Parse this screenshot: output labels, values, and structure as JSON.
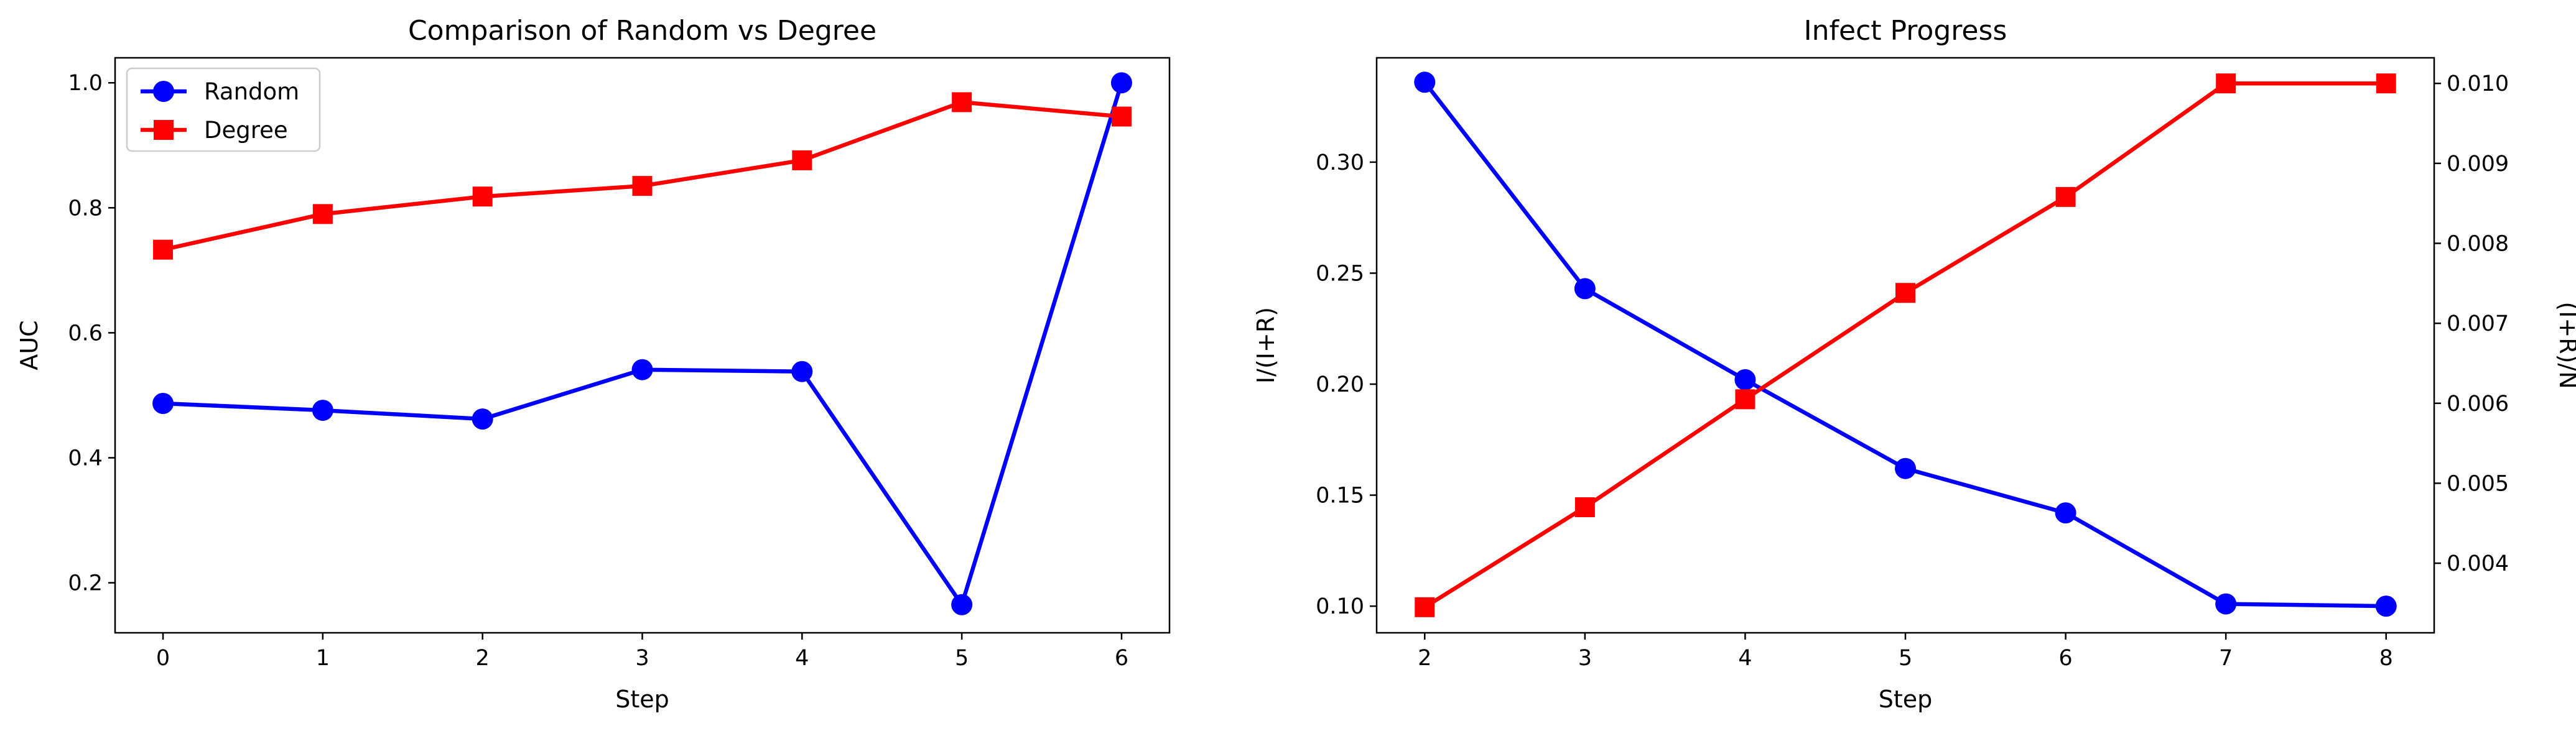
{
  "chart_data": [
    {
      "type": "line",
      "title": "Comparison of Random vs Degree",
      "xlabel": "Step",
      "ylabel": "AUC",
      "x": [
        0,
        1,
        2,
        3,
        4,
        5,
        6
      ],
      "xlim": [
        -0.3,
        6.3
      ],
      "ylim": [
        0.12,
        1.04
      ],
      "xticks": [
        "0",
        "1",
        "2",
        "3",
        "4",
        "5",
        "6"
      ],
      "yticks": [
        "0.2",
        "0.4",
        "0.6",
        "0.8",
        "1.0"
      ],
      "grid": false,
      "legend": "top-left",
      "series": [
        {
          "name": "Random",
          "color": "#0000ff",
          "marker": "circle",
          "values": [
            0.487,
            0.476,
            0.462,
            0.541,
            0.538,
            0.165,
            1.0
          ]
        },
        {
          "name": "Degree",
          "color": "#ff0000",
          "marker": "square",
          "values": [
            0.733,
            0.79,
            0.818,
            0.835,
            0.876,
            0.969,
            0.946
          ]
        }
      ]
    },
    {
      "type": "line",
      "title": "Infect Progress",
      "xlabel": "Step",
      "ylabel": "I/(I+R)",
      "ylabel_color": "#0000ff",
      "y2label": "(I+R)/N",
      "y2label_color": "#ff0000",
      "x": [
        2,
        3,
        4,
        5,
        6,
        7,
        8
      ],
      "xlim": [
        1.7,
        8.3
      ],
      "ylim": [
        0.088,
        0.347
      ],
      "y2lim": [
        0.00313,
        0.01032
      ],
      "xticks": [
        "2",
        "3",
        "4",
        "5",
        "6",
        "7",
        "8"
      ],
      "yticks": [
        "0.10",
        "0.15",
        "0.20",
        "0.25",
        "0.30"
      ],
      "y2ticks": [
        "0.004",
        "0.005",
        "0.006",
        "0.007",
        "0.008",
        "0.009",
        "0.010"
      ],
      "grid": false,
      "series": [
        {
          "color": "#0000ff",
          "marker": "circle",
          "axis": "left",
          "values": [
            0.336,
            0.243,
            0.202,
            0.162,
            0.142,
            0.101,
            0.1
          ]
        },
        {
          "color": "#ff0000",
          "marker": "square",
          "axis": "right",
          "values": [
            0.00345,
            0.0047,
            0.00605,
            0.00738,
            0.00858,
            0.01,
            0.01
          ]
        }
      ]
    }
  ]
}
